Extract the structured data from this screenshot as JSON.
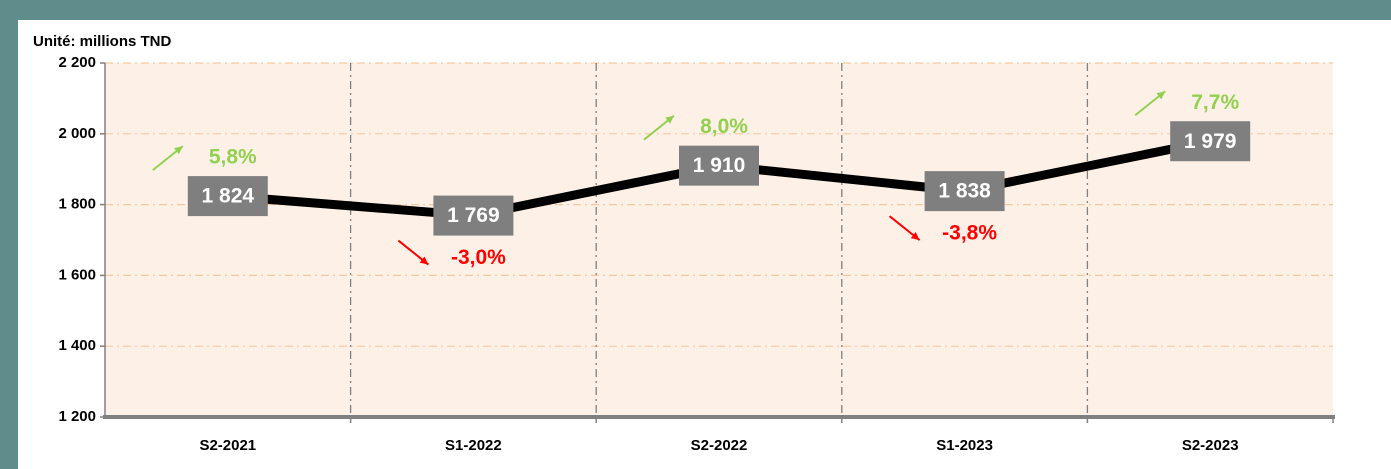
{
  "chart_data": {
    "type": "line",
    "subtitle": "Unité: millions TND",
    "categories": [
      "S2-2021",
      "S1-2022",
      "S2-2022",
      "S1-2023",
      "S2-2023"
    ],
    "values": [
      1824,
      1769,
      1910,
      1838,
      1979
    ],
    "value_labels": [
      "1 824",
      "1 769",
      "1 910",
      "1 838",
      "1 979"
    ],
    "color": "#000000",
    "label_box_color": "#7f7f7f",
    "ylim": [
      1200,
      2200
    ],
    "yticks": [
      {
        "value": 1200,
        "label": "1 200"
      },
      {
        "value": 1400,
        "label": "1 400"
      },
      {
        "value": 1600,
        "label": "1 600"
      },
      {
        "value": 1800,
        "label": "1 800"
      },
      {
        "value": 2000,
        "label": "2 000"
      },
      {
        "value": 2200,
        "label": "2 200"
      }
    ],
    "grid": true,
    "annotations": [
      {
        "text": "5,8%",
        "color": "#92d050",
        "direction": "up"
      },
      {
        "text": "-3,0%",
        "color": "#ff0000",
        "direction": "down"
      },
      {
        "text": "8,0%",
        "color": "#92d050",
        "direction": "up"
      },
      {
        "text": "-3,8%",
        "color": "#ff0000",
        "direction": "down"
      },
      {
        "text": "7,7%",
        "color": "#92d050",
        "direction": "up"
      }
    ]
  }
}
